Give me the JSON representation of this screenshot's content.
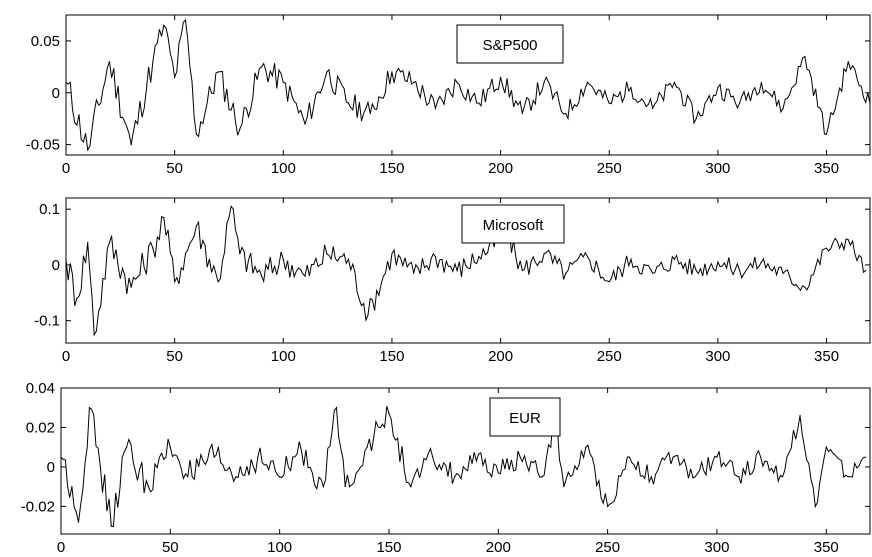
{
  "chart_data": [
    {
      "type": "line",
      "legend": "S&P500",
      "legend_placement": "top-center",
      "xlim": [
        0,
        370
      ],
      "ylim": [
        -0.06,
        0.075
      ],
      "xticks": [
        0,
        50,
        100,
        150,
        200,
        250,
        300,
        350
      ],
      "xtick_labels": [
        "0",
        "50",
        "100",
        "150",
        "200",
        "250",
        "300",
        "350"
      ],
      "yticks": [
        -0.05,
        0,
        0.05
      ],
      "ytick_labels": [
        "-0.05",
        "0",
        "0.05"
      ],
      "grid": false,
      "x": [
        0,
        10,
        20,
        30,
        40,
        45,
        50,
        55,
        60,
        70,
        80,
        90,
        100,
        110,
        120,
        130,
        140,
        150,
        160,
        170,
        180,
        190,
        200,
        210,
        220,
        230,
        240,
        250,
        260,
        270,
        280,
        290,
        300,
        310,
        320,
        330,
        340,
        350,
        360,
        370
      ],
      "y": [
        0.01,
        -0.055,
        0.03,
        -0.05,
        0.03,
        0.065,
        0.015,
        0.07,
        -0.04,
        0.02,
        -0.035,
        0.025,
        0.01,
        -0.03,
        0.02,
        -0.01,
        -0.02,
        0.02,
        0.01,
        -0.015,
        0.01,
        -0.01,
        0.015,
        -0.02,
        0.01,
        -0.02,
        0.01,
        -0.01,
        0.005,
        -0.015,
        0.01,
        -0.025,
        0.005,
        -0.01,
        0.01,
        -0.015,
        0.035,
        -0.04,
        0.03,
        -0.01
      ]
    },
    {
      "type": "line",
      "legend": "Microsoft",
      "legend_placement": "top-center",
      "xlim": [
        0,
        370
      ],
      "ylim": [
        -0.14,
        0.12
      ],
      "xticks": [
        0,
        50,
        100,
        150,
        200,
        250,
        300,
        350
      ],
      "xtick_labels": [
        "0",
        "50",
        "100",
        "150",
        "200",
        "250",
        "300",
        "350"
      ],
      "yticks": [
        -0.1,
        0,
        0.1
      ],
      "ytick_labels": [
        "-0.1",
        "0",
        "0.1"
      ],
      "grid": false,
      "x": [
        0,
        5,
        10,
        13,
        20,
        30,
        40,
        45,
        50,
        60,
        70,
        76,
        80,
        90,
        100,
        110,
        120,
        130,
        139,
        150,
        160,
        170,
        180,
        190,
        203,
        210,
        220,
        230,
        240,
        250,
        260,
        270,
        280,
        290,
        300,
        310,
        320,
        330,
        340,
        350,
        360,
        368
      ],
      "y": [
        0.01,
        -0.06,
        0.04,
        -0.125,
        0.04,
        -0.04,
        0.03,
        0.085,
        -0.03,
        0.07,
        -0.03,
        0.105,
        0.02,
        -0.02,
        0.01,
        -0.02,
        0.02,
        0.01,
        -0.09,
        0.02,
        -0.015,
        0.015,
        -0.01,
        0.015,
        0.055,
        -0.01,
        0.02,
        -0.015,
        0.015,
        -0.03,
        0.01,
        -0.015,
        0.01,
        -0.01,
        0.005,
        -0.01,
        0.005,
        -0.015,
        -0.04,
        0.03,
        0.045,
        -0.01
      ]
    },
    {
      "type": "line",
      "legend": "EUR",
      "legend_placement": "top-center",
      "xlim": [
        0,
        370
      ],
      "ylim": [
        -0.034,
        0.04
      ],
      "xticks": [
        0,
        50,
        100,
        150,
        200,
        250,
        300,
        350
      ],
      "xtick_labels": [
        "0",
        "50",
        "100",
        "150",
        "200",
        "250",
        "300",
        "350"
      ],
      "yticks": [
        -0.02,
        0,
        0.02,
        0.04
      ],
      "ytick_labels": [
        "-0.02",
        "0",
        "0.02",
        "0.04"
      ],
      "grid": false,
      "x": [
        0,
        5,
        8,
        13,
        18,
        23,
        30,
        40,
        50,
        60,
        70,
        80,
        90,
        100,
        110,
        120,
        126,
        130,
        140,
        150,
        160,
        170,
        180,
        190,
        200,
        210,
        220,
        226,
        230,
        240,
        250,
        260,
        270,
        280,
        290,
        300,
        310,
        320,
        330,
        338,
        345,
        350,
        360,
        368
      ],
      "y": [
        0.005,
        -0.01,
        -0.028,
        0.03,
        0.0,
        -0.03,
        0.01,
        -0.01,
        0.01,
        -0.005,
        0.005,
        -0.005,
        0.005,
        -0.005,
        0.008,
        -0.01,
        0.03,
        -0.01,
        0.01,
        0.027,
        -0.01,
        0.005,
        -0.005,
        0.003,
        -0.003,
        0.005,
        -0.005,
        0.025,
        -0.01,
        0.01,
        -0.02,
        0.005,
        -0.005,
        0.005,
        -0.005,
        0.005,
        -0.005,
        0.005,
        -0.005,
        0.026,
        -0.02,
        0.01,
        -0.005,
        0.005
      ]
    }
  ]
}
